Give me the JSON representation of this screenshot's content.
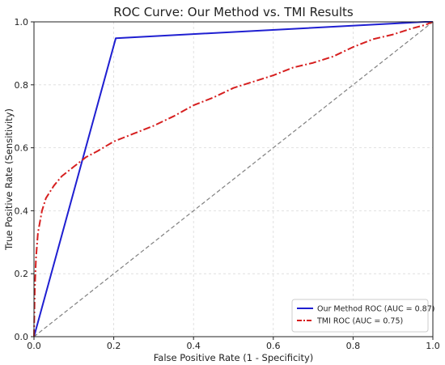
{
  "chart_data": {
    "type": "line",
    "title": "ROC Curve: Our Method vs. TMI Results",
    "xlabel": "False Positive Rate (1 - Specificity)",
    "ylabel": "True Positive Rate (Sensitivity)",
    "xlim": [
      0,
      1
    ],
    "ylim": [
      0,
      1
    ],
    "xticks": [
      "0.0",
      "0.2",
      "0.4",
      "0.6",
      "0.8",
      "1.0"
    ],
    "yticks": [
      "0.0",
      "0.2",
      "0.4",
      "0.6",
      "0.8",
      "1.0"
    ],
    "grid": true,
    "legend_position": "bottom-right",
    "series": [
      {
        "name": "Our Method ROC (AUC = 0.87)",
        "color": "#1f1fd1",
        "style": "solid",
        "x": [
          0.0,
          0.205,
          0.98,
          1.0
        ],
        "y": [
          0.0,
          0.948,
          1.0,
          1.0
        ]
      },
      {
        "name": "TMI ROC (AUC = 0.75)",
        "color": "#d61f1f",
        "style": "dashdot",
        "x": [
          0.0,
          0.002,
          0.005,
          0.01,
          0.02,
          0.03,
          0.05,
          0.07,
          0.1,
          0.13,
          0.16,
          0.2,
          0.25,
          0.3,
          0.35,
          0.4,
          0.45,
          0.5,
          0.55,
          0.6,
          0.65,
          0.7,
          0.75,
          0.8,
          0.85,
          0.9,
          0.95,
          0.98,
          1.0
        ],
        "y": [
          0.0,
          0.15,
          0.25,
          0.33,
          0.4,
          0.44,
          0.48,
          0.51,
          0.54,
          0.57,
          0.59,
          0.62,
          0.645,
          0.67,
          0.7,
          0.735,
          0.76,
          0.79,
          0.81,
          0.83,
          0.855,
          0.87,
          0.89,
          0.92,
          0.945,
          0.96,
          0.98,
          0.99,
          1.0
        ]
      },
      {
        "color": "#808080",
        "style": "dashed",
        "x": [
          0,
          1
        ],
        "y": [
          0,
          1
        ]
      }
    ]
  }
}
